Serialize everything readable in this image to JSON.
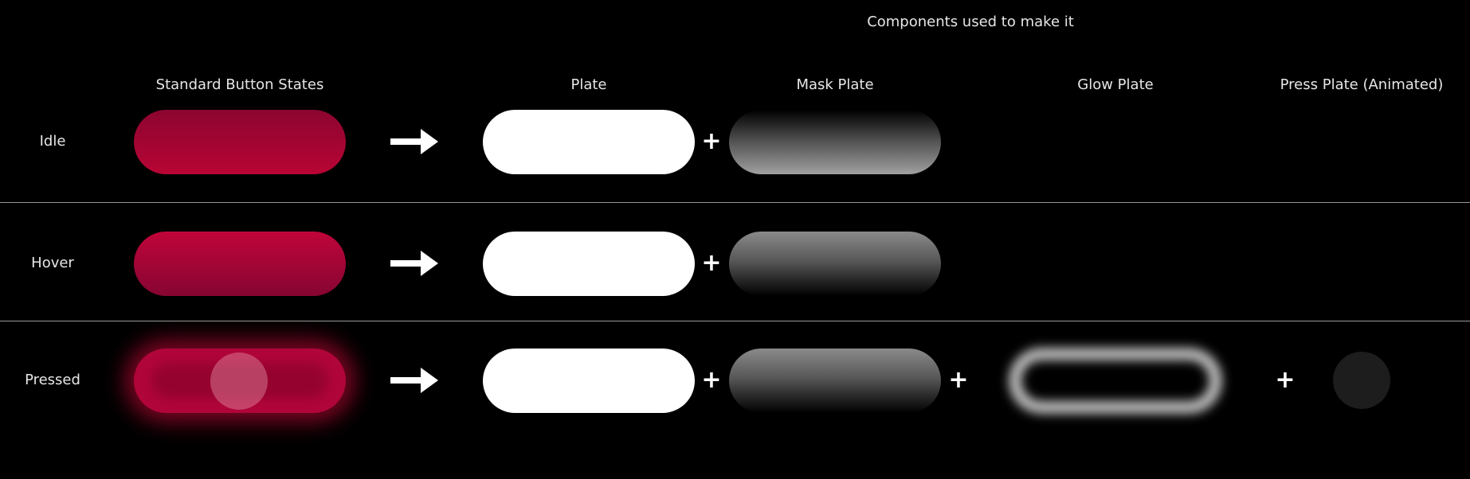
{
  "header": {
    "components_title": "Components used to make it"
  },
  "columns": {
    "standard": "Standard Button States",
    "plate": "Plate",
    "mask": "Mask Plate",
    "glow": "Glow Plate",
    "press": "Press Plate (Animated)"
  },
  "rows": [
    {
      "label": "Idle"
    },
    {
      "label": "Hover"
    },
    {
      "label": "Pressed"
    }
  ],
  "symbols": {
    "plus": "+"
  },
  "colors": {
    "accent": "#b80535",
    "background": "#000000",
    "plate": "#ffffff"
  },
  "icons": [
    "arrow-right-icon"
  ]
}
